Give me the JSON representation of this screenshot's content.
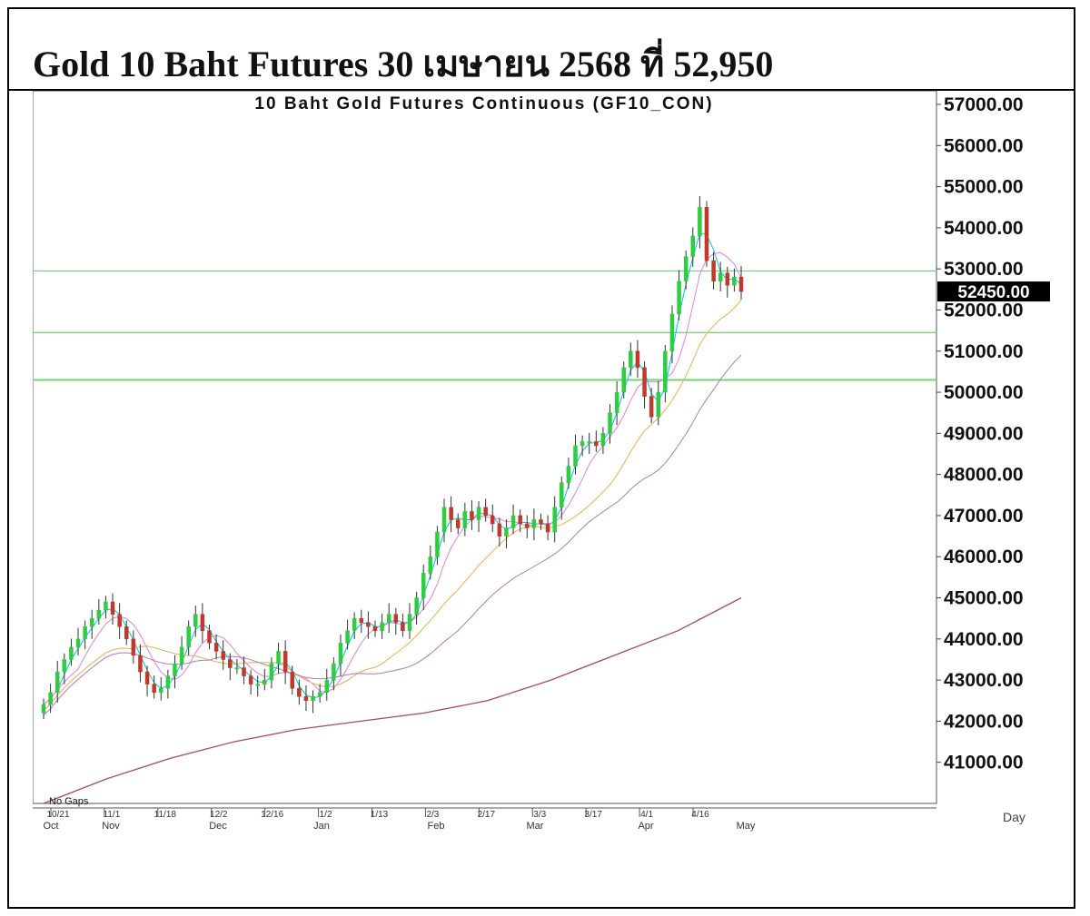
{
  "header": {
    "title": "Gold 10 Baht Futures 30 เมษายน 2568 ที่ 52,950"
  },
  "chart_data": {
    "type": "candlestick",
    "title": "10 Baht Gold Futures Continuous (GF10_CON)",
    "ylim": [
      40000,
      57000
    ],
    "yticks": [
      "57000.00",
      "56000.00",
      "55000.00",
      "54000.00",
      "53000.00",
      "52000.00",
      "51000.00",
      "50000.00",
      "49000.00",
      "48000.00",
      "47000.00",
      "46000.00",
      "45000.00",
      "44000.00",
      "43000.00",
      "42000.00",
      "41000.00"
    ],
    "last_price_label": "52450.00",
    "last_price": 52450,
    "x_date_labels": [
      "10/21",
      "11/1",
      "11/18",
      "12/2",
      "12/16",
      "1/2",
      "1/13",
      "2/3",
      "2/17",
      "3/3",
      "3/17",
      "4/1",
      "4/16"
    ],
    "x_month_labels": [
      "Oct",
      "Nov",
      "Dec",
      "Jan",
      "Feb",
      "Mar",
      "Apr",
      "May"
    ],
    "footer_note": "No Gaps",
    "period_label": "Day",
    "colors": {
      "up": "#2ecc40",
      "down": "#c0392b",
      "ma_fast": "#00c8d8",
      "ma_mid": "#e080e0",
      "ma_slow": "#e8b04a",
      "ma_long": "#b07ab8",
      "ma_200": "#a8486a",
      "hline": "#6fd66f"
    },
    "horizontal_lines": [
      52950,
      51450,
      50300
    ],
    "candles_close": [
      42400,
      42700,
      43200,
      43500,
      43800,
      44000,
      44300,
      44500,
      44700,
      44900,
      44600,
      44300,
      44000,
      43600,
      43200,
      42900,
      42700,
      42800,
      43100,
      43400,
      43800,
      44300,
      44600,
      44200,
      43900,
      43700,
      43500,
      43300,
      43300,
      43100,
      42900,
      42900,
      43000,
      43400,
      43700,
      43200,
      42800,
      42600,
      42500,
      42600,
      42700,
      43000,
      43400,
      43900,
      44200,
      44500,
      44400,
      44300,
      44200,
      44400,
      44600,
      44400,
      44200,
      44600,
      45000,
      45600,
      46000,
      46600,
      47200,
      46900,
      46700,
      47100,
      46900,
      47200,
      47000,
      46800,
      46500,
      46700,
      47000,
      46800,
      46700,
      46900,
      46800,
      46600,
      47200,
      47800,
      48200,
      48700,
      48800,
      48800,
      48700,
      49000,
      49500,
      50000,
      50600,
      51000,
      50600,
      49900,
      49400,
      50000,
      51000,
      51900,
      52700,
      53300,
      53800,
      54500,
      53200,
      52700,
      52900,
      52600,
      52800,
      52450
    ],
    "ma_200_values": [
      40000,
      40600,
      41100,
      41500,
      41800,
      42000,
      42200,
      42500,
      43000,
      43600,
      44200,
      45000
    ]
  }
}
